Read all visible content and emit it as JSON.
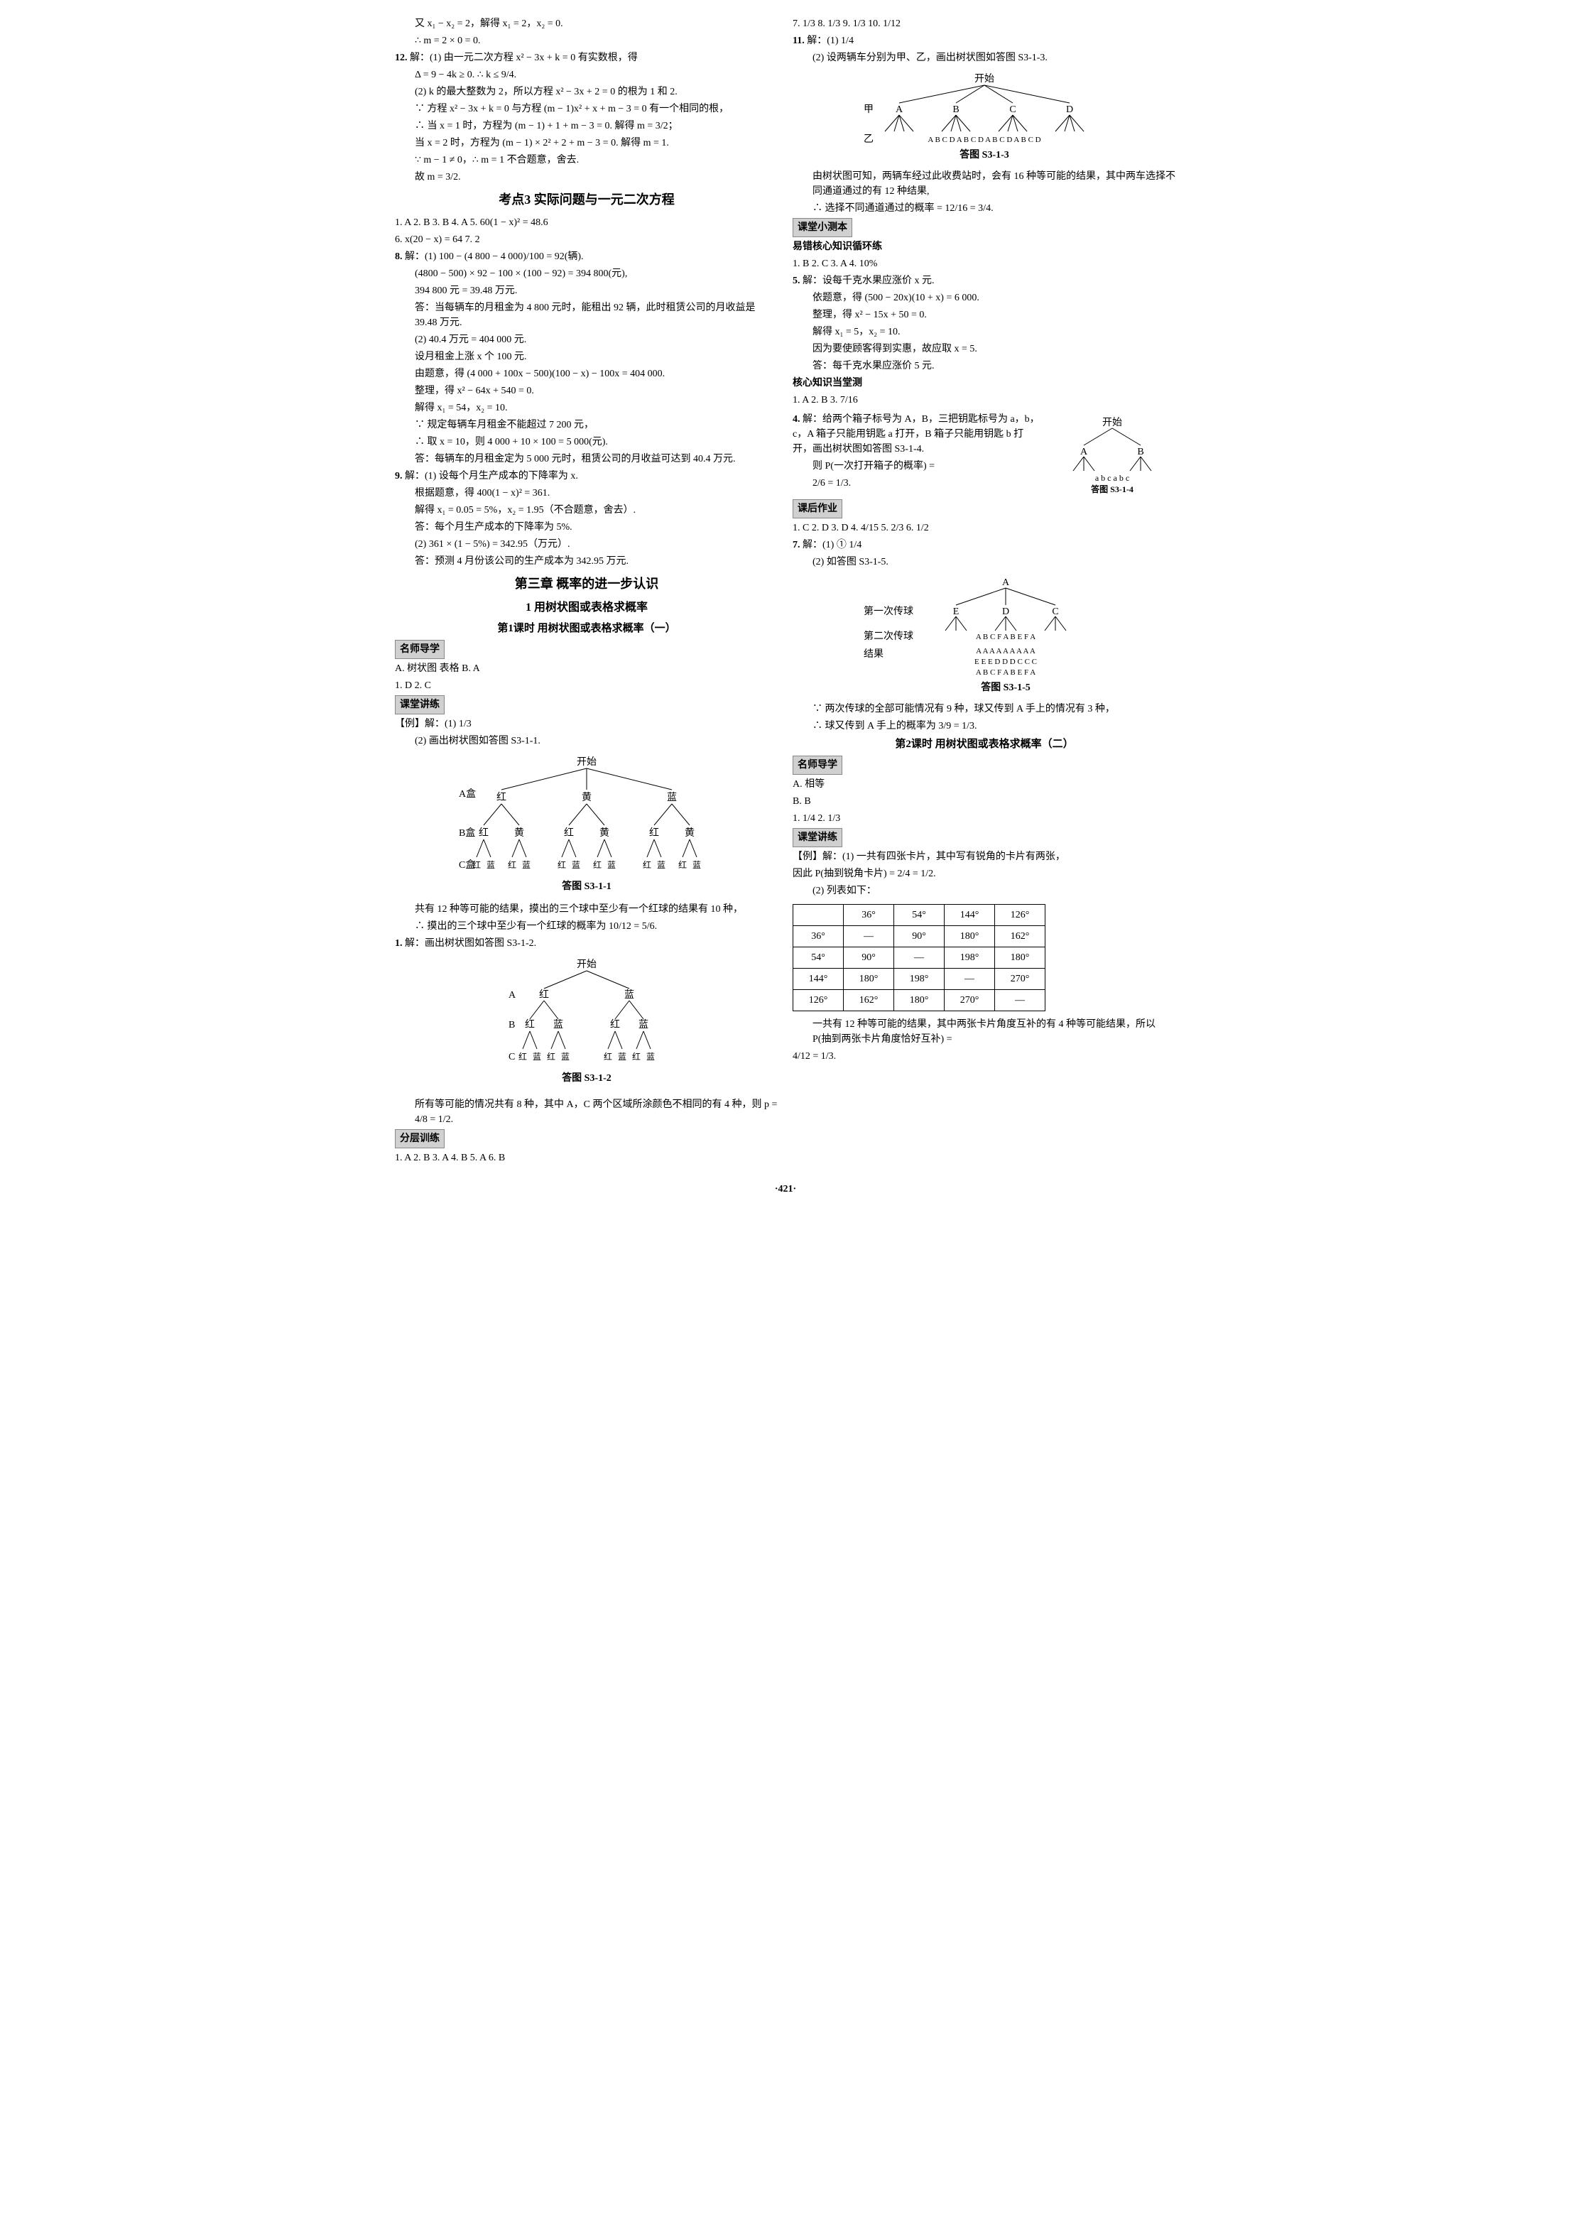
{
  "page_number": "·421·",
  "left_col": {
    "line1": "又 x₁ − x₂ = 2，解得 x₁ = 2，x₂ = 0.",
    "line2": "∴ m = 2 × 0 = 0.",
    "q12_prefix": "12.",
    "q12_l1": "解：(1) 由一元二次方程 x² − 3x + k = 0 有实数根，得",
    "q12_l2": "Δ = 9 − 4k ≥ 0.  ∴ k ≤ 9/4.",
    "q12_l3": "(2) k 的最大整数为 2，所以方程 x² − 3x + 2 = 0 的根为 1 和 2.",
    "q12_l4": "∵ 方程 x² − 3x + k = 0 与方程 (m − 1)x² + x + m − 3 = 0 有一个相同的根，",
    "q12_l5": "∴ 当 x = 1 时，方程为 (m − 1) + 1 + m − 3 = 0. 解得 m = 3/2；",
    "q12_l6": "当 x = 2 时，方程为 (m − 1) × 2² + 2 + m − 3 = 0. 解得 m = 1.",
    "q12_l7": "∵ m − 1 ≠ 0，∴ m = 1 不合题意，舍去.",
    "q12_l8": "故 m = 3/2.",
    "kaodian3": "考点3  实际问题与一元二次方程",
    "kd3_q1": "1. A  2. B  3. B  4. A  5. 60(1 − x)² = 48.6",
    "kd3_q6": "6. x(20 − x) = 64  7. 2",
    "kd3_q8_prefix": "8.",
    "kd3_q8_l1": "解：(1) 100 − (4 800 − 4 000)/100 = 92(辆).",
    "kd3_q8_l2": "(4800 − 500) × 92 − 100 × (100 − 92) = 394 800(元),",
    "kd3_q8_l3": "394 800 元 = 39.48 万元.",
    "kd3_q8_l4": "答：当每辆车的月租金为 4 800 元时，能租出 92 辆，此时租赁公司的月收益是 39.48 万元.",
    "kd3_q8_l5": "(2) 40.4 万元 = 404 000 元.",
    "kd3_q8_l6": "设月租金上涨 x 个 100 元.",
    "kd3_q8_l7": "由题意，得 (4 000 + 100x − 500)(100 − x) − 100x = 404 000.",
    "kd3_q8_l8": "整理，得 x² − 64x + 540 = 0.",
    "kd3_q8_l9": "解得 x₁ = 54，x₂ = 10.",
    "kd3_q8_l10": "∵ 规定每辆车月租金不能超过 7 200 元，",
    "kd3_q8_l11": "∴ 取 x = 10，则 4 000 + 10 × 100 = 5 000(元).",
    "kd3_q8_l12": "答：每辆车的月租金定为 5 000 元时，租赁公司的月收益可达到 40.4 万元.",
    "kd3_q9_prefix": "9.",
    "kd3_q9_l1": "解：(1) 设每个月生产成本的下降率为 x.",
    "kd3_q9_l2": "根据题意，得 400(1 − x)² = 361.",
    "kd3_q9_l3": "解得 x₁ = 0.05 = 5%，x₂ = 1.95（不合题意，舍去）.",
    "kd3_q9_l4": "答：每个月生产成本的下降率为 5%.",
    "kd3_q9_l5": "(2) 361 × (1 − 5%) = 342.95（万元）.",
    "kd3_q9_l6": "答：预测 4 月份该公司的生产成本为 342.95 万元.",
    "ch3_title": "第三章  概率的进一步认识",
    "ch3_sub1": "1  用树状图或表格求概率",
    "ch3_sub1_1": "第1课时  用树状图或表格求概率（一）",
    "mingshi_label": "名师导学",
    "mingshi_A": "A. 树状图  表格  B. A",
    "mingshi_1": "1. D  2. C",
    "ketang_label": "课堂讲练",
    "li_header": "【例】解：(1) 1/3",
    "li_l2": "(2) 画出树状图如答图 S3-1-1.",
    "tree1_caption": "答图 S3-1-1",
    "tree1_start": "开始",
    "tree1_A": "A盒",
    "tree1_B": "B盒",
    "tree1_C": "C盒",
    "tree1_colors_l1": [
      "红",
      "黄",
      "蓝"
    ],
    "tree1_colors_l2": [
      "红",
      "黄",
      "红",
      "黄",
      "红",
      "黄"
    ],
    "tree1_colors_l3": [
      "红",
      "蓝",
      "红",
      "蓝",
      "红",
      "蓝",
      "红",
      "蓝",
      "红",
      "蓝",
      "红",
      "蓝"
    ],
    "li_after1": "共有 12 种等可能的结果，摸出的三个球中至少有一个红球的结果有 10 种，",
    "li_after2": "∴ 摸出的三个球中至少有一个红球的概率为 10/12 = 5/6.",
    "fc1_prefix": "1.",
    "fc1_l1": "解：画出树状图如答图 S3-1-2.",
    "tree2_caption": "答图 S3-1-2",
    "tree2_start": "开始",
    "tree2_A": "A",
    "tree2_B": "B",
    "tree2_C": "C",
    "tree2_l1": [
      "红",
      "蓝"
    ],
    "tree2_l2": [
      "红",
      "蓝",
      "红",
      "蓝"
    ],
    "tree2_l3": [
      "红",
      "蓝",
      "红",
      "蓝",
      "红",
      "蓝",
      "红",
      "蓝"
    ],
    "fc1_after1": "所有等可能的情况共有 8 种，其中 A，C 两个区域所涂颜色不相同的有 4 种，则 p = 4/8 = 1/2.",
    "fenceng_label": "分层训练",
    "fenceng_q": "1. A  2. B  3. A  4. B  5. A  6. B"
  },
  "right_col": {
    "q7": "7. 1/3  8. 1/3  9. 1/3  10. 1/12",
    "q11_prefix": "11.",
    "q11_l1": "解：(1) 1/4",
    "q11_l2": "(2) 设两辆车分别为甲、乙，画出树状图如答图 S3-1-3.",
    "tree3_start": "开始",
    "tree3_row1_label": "甲",
    "tree3_row1": [
      "A",
      "B",
      "C",
      "D"
    ],
    "tree3_row2_label": "乙",
    "tree3_row2": "A B C D  A B C D  A B C D  A B C D",
    "tree3_caption": "答图 S3-1-3",
    "q11_l3": "由树状图可知，两辆车经过此收费站时，会有 16 种等可能的结果，其中两车选择不同通道通过的有 12 种结果,",
    "q11_l4": "∴ 选择不同通道通过的概率 = 12/16 = 3/4.",
    "xiaoce_label": "课堂小测本",
    "yicuo_label": "易错核心知识循环练",
    "yicuo_q1": "1. B  2. C  3. A  4. 10%",
    "yicuo_q5_prefix": "5.",
    "yicuo_q5_l1": "解：设每千克水果应涨价 x 元.",
    "yicuo_q5_l2": "依题意，得 (500 − 20x)(10 + x) = 6 000.",
    "yicuo_q5_l3": "整理，得 x² − 15x + 50 = 0.",
    "yicuo_q5_l4": "解得 x₁ = 5，x₂ = 10.",
    "yicuo_q5_l5": "因为要使顾客得到实惠，故应取 x = 5.",
    "yicuo_q5_l6": "答：每千克水果应涨价 5 元.",
    "hexin_label": "核心知识当堂测",
    "hexin_q1": "1. A  2. B  3. 7/16",
    "hexin_q4_prefix": "4.",
    "hexin_q4_l1": "解：给两个箱子标号为 A，B，三把钥匙标号为 a，b，c，A 箱子只能用钥匙 a 打开，B 箱子只能用钥匙 b 打开，画出树状图如答图 S3-1-4.",
    "hexin_q4_l2": "则 P(一次打开箱子的概率) =",
    "hexin_q4_l3": "2/6 = 1/3.",
    "tree4_start": "开始",
    "tree4_l1": [
      "A",
      "B"
    ],
    "tree4_l2": "a  b  c    a  b  c",
    "tree4_caption": "答图 S3-1-4",
    "kehou_label": "课后作业",
    "kehou_q1": "1. C  2. D  3. D  4. 4/15  5. 2/3  6. 1/2",
    "kehou_q7_prefix": "7.",
    "kehou_q7_l1": "解：(1) ① 1/4",
    "kehou_q7_l2": "(2) 如答图 S3-1-5.",
    "tree5_caption": "答图 S3-1-5",
    "tree5_labels": {
      "r1": "第一次传球",
      "r2": "第二次传球",
      "r3": "结果"
    },
    "tree5_root": "A",
    "tree5_l1": [
      "E",
      "D",
      "C"
    ],
    "tree5_l2": "A B C F A B E F A",
    "tree5_res_r1": "A A A A A A A A A",
    "tree5_res_r2": "E E E D D D C C C",
    "tree5_res_r3": "A B C F A B E F A",
    "kehou_q7_l3": "∵ 两次传球的全部可能情况有 9 种，球又传到 A 手上的情况有 3 种，",
    "kehou_q7_l4": "∴ 球又传到 A 手上的概率为 3/9 = 1/3.",
    "ke2_title": "第2课时  用树状图或表格求概率（二）",
    "mingshi2_label": "名师导学",
    "mingshi2_A": "A. 相等",
    "mingshi2_B": "B. B",
    "mingshi2_q1": "1. 1/4  2. 1/3",
    "ketang2_label": "课堂讲练",
    "li2_l1": "【例】解：(1) 一共有四张卡片，其中写有锐角的卡片有两张，",
    "li2_l2": "因此 P(抽到锐角卡片) = 2/4 = 1/2.",
    "li2_l3": "(2) 列表如下：",
    "angle_table": {
      "headers": [
        "",
        "36°",
        "54°",
        "144°",
        "126°"
      ],
      "rows": [
        [
          "36°",
          "—",
          "90°",
          "180°",
          "162°"
        ],
        [
          "54°",
          "90°",
          "—",
          "198°",
          "180°"
        ],
        [
          "144°",
          "180°",
          "198°",
          "—",
          "270°"
        ],
        [
          "126°",
          "162°",
          "180°",
          "270°",
          "—"
        ]
      ]
    },
    "li2_after1": "一共有 12 种等可能的结果，其中两张卡片角度互补的有 4 种等可能结果，所以 P(抽到两张卡片角度恰好互补) =",
    "li2_after2": "4/12 = 1/3."
  }
}
